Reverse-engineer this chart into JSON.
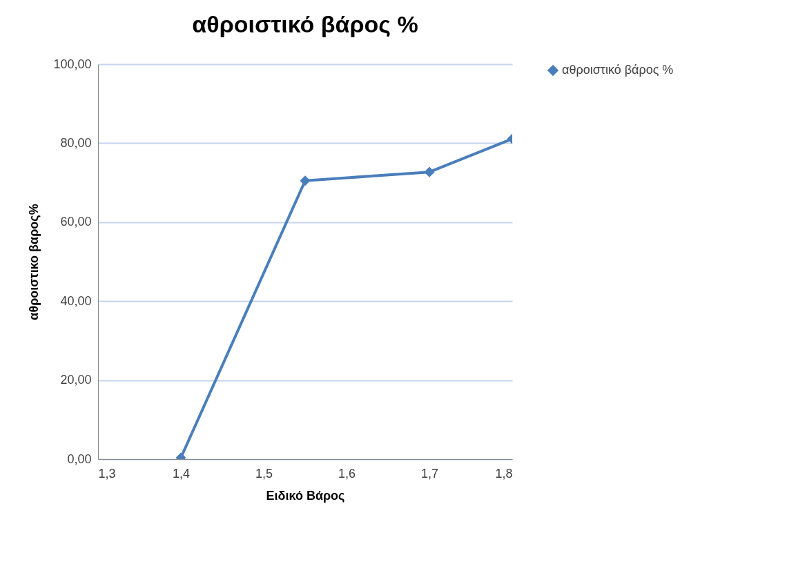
{
  "chart_data": {
    "type": "line",
    "title": "αθροιστικό βάρος %",
    "xlabel": "Ειδικό Βάρος",
    "ylabel": "αθροιστικο βαρος%",
    "x": [
      1.4,
      1.55,
      1.7,
      1.8
    ],
    "series": [
      {
        "name": "αθροιστικό βάρος %",
        "color": "#4a7ebb",
        "values": [
          0.35,
          70.5,
          72.7,
          81.1
        ]
      }
    ],
    "xlim": [
      1.3,
      1.8
    ],
    "xticks": [
      {
        "value": 1.3,
        "label": "1,3"
      },
      {
        "value": 1.4,
        "label": "1,4"
      },
      {
        "value": 1.5,
        "label": "1,5"
      },
      {
        "value": 1.6,
        "label": "1,6"
      },
      {
        "value": 1.7,
        "label": "1,7"
      },
      {
        "value": 1.8,
        "label": "1,8"
      }
    ],
    "ylim": [
      0,
      100
    ],
    "yticks": [
      {
        "value": 0,
        "label": "0,00"
      },
      {
        "value": 20,
        "label": "20,00"
      },
      {
        "value": 40,
        "label": "40,00"
      },
      {
        "value": 60,
        "label": "60,00"
      },
      {
        "value": 80,
        "label": "80,00"
      },
      {
        "value": 100,
        "label": "100,00"
      }
    ],
    "grid": "y",
    "legend": "right",
    "marker": "diamond",
    "line_style": "solid"
  }
}
